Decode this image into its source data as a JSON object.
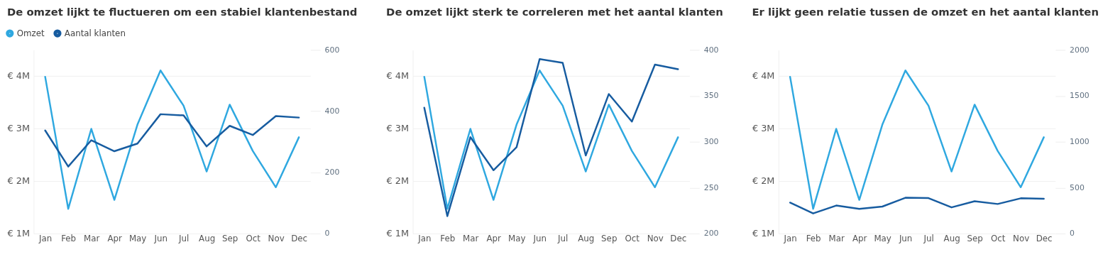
{
  "chart_data": [
    {
      "type": "line",
      "title": "De omzet lijkt te fluctueren om een stabiel klantenbestand",
      "categories": [
        "Jan",
        "Feb",
        "Mar",
        "Apr",
        "May",
        "Jun",
        "Jul",
        "Aug",
        "Sep",
        "Oct",
        "Nov",
        "Dec"
      ],
      "series": [
        {
          "name": "Omzet",
          "color": "#2fa8e0",
          "values": [
            3980000,
            1470000,
            2990000,
            1640000,
            3070000,
            4100000,
            3430000,
            2180000,
            3450000,
            2570000,
            1880000,
            2830000
          ]
        },
        {
          "name": "Aantal klanten",
          "color": "#175ca0",
          "axis": "y2",
          "values": [
            337,
            219,
            305,
            269,
            294,
            390,
            386,
            285,
            352,
            322,
            384,
            379
          ]
        }
      ],
      "ylim": [
        1000000,
        4490000
      ],
      "yticks": [
        {
          "value": 1000000,
          "label": "€ 1M"
        },
        {
          "value": 2000000,
          "label": "€ 2M"
        },
        {
          "value": 3000000,
          "label": "€ 3M"
        },
        {
          "value": 4000000,
          "label": "€ 4M"
        }
      ],
      "y2lim": [
        0,
        600
      ],
      "y2ticks": [
        0,
        200,
        400,
        600
      ],
      "grid": "y",
      "legend": "top left"
    },
    {
      "type": "line",
      "title": "De omzet lijkt sterk te correleren met het aantal klanten",
      "categories": [
        "Jan",
        "Feb",
        "Mar",
        "Apr",
        "May",
        "Jun",
        "Jul",
        "Aug",
        "Sep",
        "Oct",
        "Nov",
        "Dec"
      ],
      "series": [
        {
          "color": "#2fa8e0",
          "values": [
            3980000,
            1470000,
            2990000,
            1640000,
            3070000,
            4100000,
            3430000,
            2180000,
            3450000,
            2570000,
            1880000,
            2830000
          ]
        },
        {
          "color": "#175ca0",
          "axis": "y2",
          "values": [
            337,
            219,
            305,
            269,
            294,
            390,
            386,
            285,
            352,
            322,
            384,
            379
          ]
        }
      ],
      "ylim": [
        1000000,
        4490000
      ],
      "yticks": [
        {
          "value": 1000000,
          "label": "€ 1M"
        },
        {
          "value": 2000000,
          "label": "€ 2M"
        },
        {
          "value": 3000000,
          "label": "€ 3M"
        },
        {
          "value": 4000000,
          "label": "€ 4M"
        }
      ],
      "y2lim": [
        200,
        400
      ],
      "y2ticks": [
        200,
        250,
        300,
        350,
        400
      ],
      "grid": "y"
    },
    {
      "type": "line",
      "title": "Er lijkt geen relatie tussen de omzet en het aantal klanten",
      "categories": [
        "Jan",
        "Feb",
        "Mar",
        "Apr",
        "May",
        "Jun",
        "Jul",
        "Aug",
        "Sep",
        "Oct",
        "Nov",
        "Dec"
      ],
      "series": [
        {
          "color": "#2fa8e0",
          "values": [
            3980000,
            1470000,
            2990000,
            1640000,
            3070000,
            4100000,
            3430000,
            2180000,
            3450000,
            2570000,
            1880000,
            2830000
          ]
        },
        {
          "color": "#175ca0",
          "axis": "y2",
          "values": [
            337,
            219,
            305,
            269,
            294,
            390,
            386,
            285,
            352,
            322,
            384,
            379
          ]
        }
      ],
      "ylim": [
        1000000,
        4490000
      ],
      "yticks": [
        {
          "value": 1000000,
          "label": "€ 1M"
        },
        {
          "value": 2000000,
          "label": "€ 2M"
        },
        {
          "value": 3000000,
          "label": "€ 3M"
        },
        {
          "value": 4000000,
          "label": "€ 4M"
        }
      ],
      "y2lim": [
        0,
        2000
      ],
      "y2ticks": [
        0,
        500,
        1000,
        1500,
        2000
      ],
      "grid": "y"
    }
  ]
}
